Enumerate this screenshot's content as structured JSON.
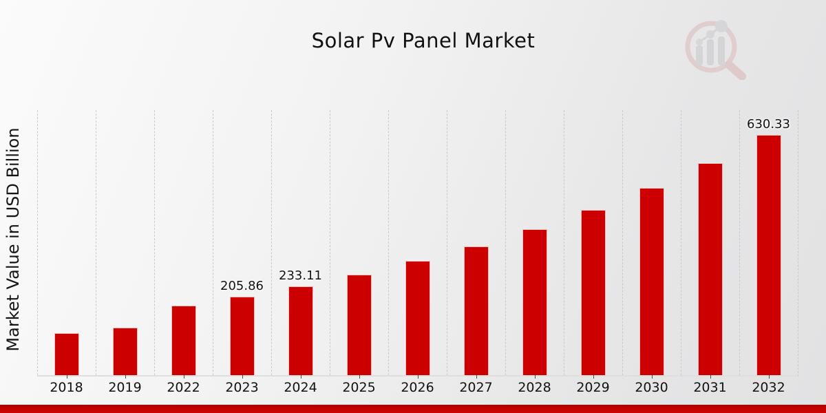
{
  "page": {
    "title": "Solar Pv Panel Market",
    "y_axis_label": "Market Value in USD Billion",
    "watermark_logo": "magnifier-growth-chart-logo",
    "footer_band_color": "#c40202"
  },
  "chart_data": {
    "type": "bar",
    "title": "Solar Pv Panel Market",
    "xlabel": "",
    "ylabel": "Market Value in USD Billion",
    "categories": [
      "2018",
      "2019",
      "2022",
      "2023",
      "2024",
      "2025",
      "2026",
      "2027",
      "2028",
      "2029",
      "2030",
      "2031",
      "2032"
    ],
    "values": [
      110.5,
      125.2,
      181.8,
      205.86,
      233.11,
      263.97,
      298.93,
      338.51,
      383.35,
      434.11,
      491.61,
      556.73,
      630.33
    ],
    "bar_labels": [
      "",
      "",
      "",
      "205.86",
      "233.11",
      "",
      "",
      "",
      "",
      "",
      "",
      "",
      "630.33"
    ],
    "bar_color": "#cc0000",
    "ylim": [
      0,
      695
    ],
    "grid": "vertical-dashed-column-separators",
    "legend": "none"
  }
}
